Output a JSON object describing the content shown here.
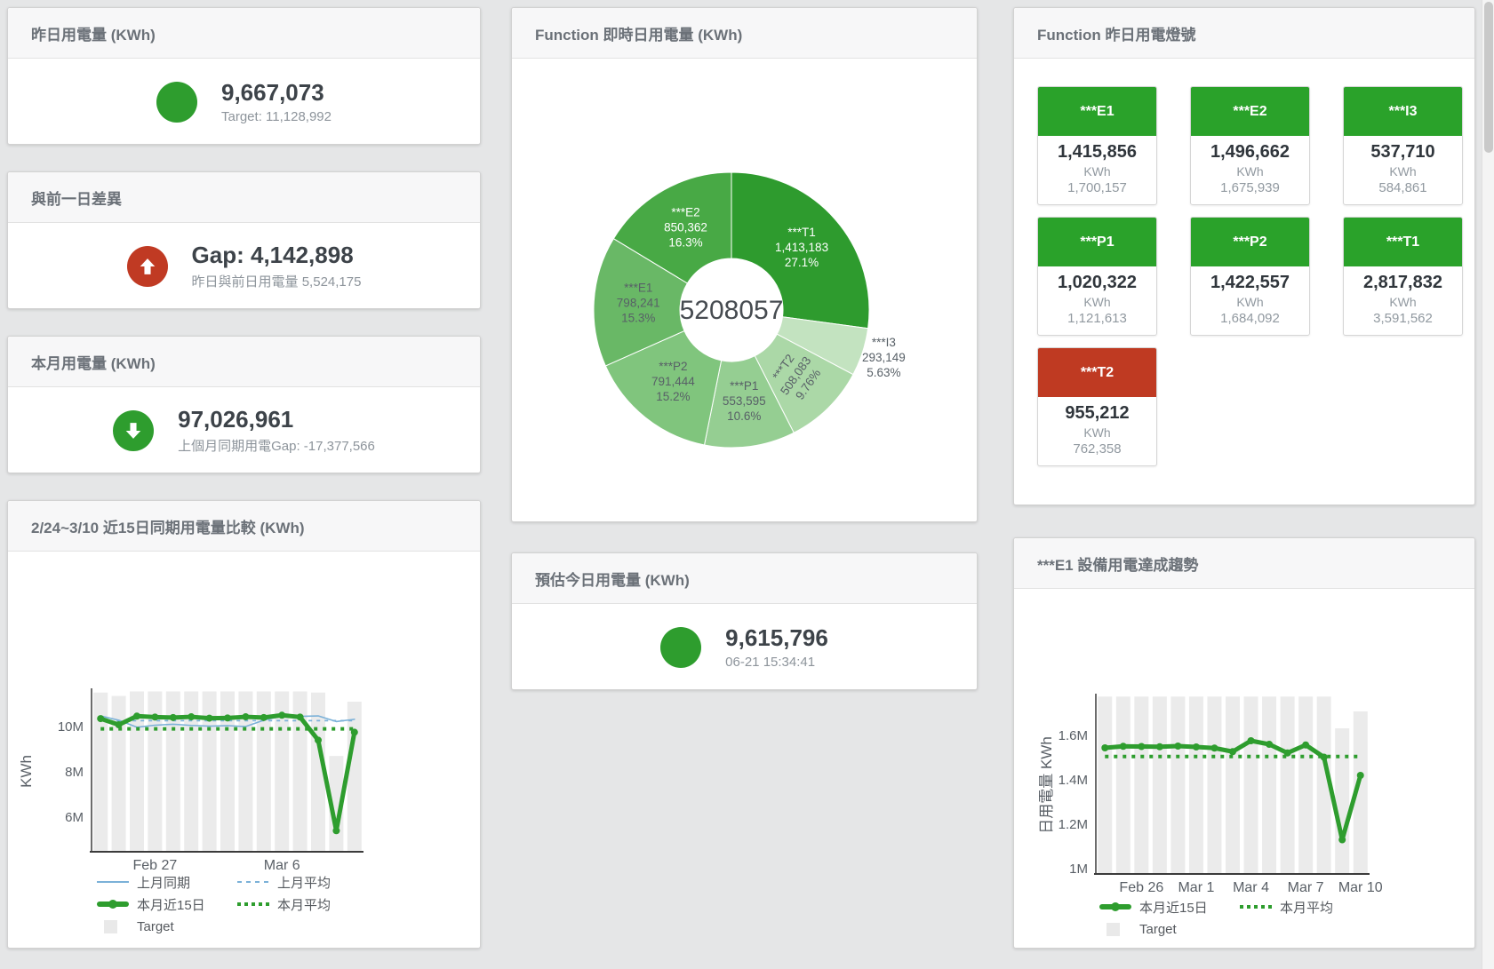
{
  "panels": {
    "yesterday": {
      "title": "昨日用電量 (KWh)",
      "value": "9,667,073",
      "subtext": "Target: 11,128,992",
      "indicator_color": "#2e9d2e",
      "arrow": "none"
    },
    "gap_prev_day": {
      "title": "與前一日差異",
      "value": "Gap: 4,142,898",
      "subtext": "昨日與前日用電量 5,524,175",
      "indicator_color": "#c03a23",
      "arrow": "up"
    },
    "month": {
      "title": "本月用電量 (KWh)",
      "value": "97,026,961",
      "subtext": "上個月同期用電Gap: -17,377,566",
      "indicator_color": "#2e9d2e",
      "arrow": "down"
    },
    "estimate_today": {
      "title": "預估今日用電量 (KWh)",
      "value": "9,615,796",
      "subtext": "06-21 15:34:41",
      "indicator_color": "#2e9d2e",
      "arrow": "none"
    },
    "donut_panel": {
      "title": "Function 即時日用電量 (KWh)"
    },
    "lights": {
      "title": "Function 昨日用電燈號",
      "tiles": [
        {
          "label": "***E1",
          "value": "1,415,856",
          "unit": "KWh",
          "target": "1,700,157",
          "status_color": "#2aa22a"
        },
        {
          "label": "***E2",
          "value": "1,496,662",
          "unit": "KWh",
          "target": "1,675,939",
          "status_color": "#2aa22a"
        },
        {
          "label": "***I3",
          "value": "537,710",
          "unit": "KWh",
          "target": "584,861",
          "status_color": "#2aa22a"
        },
        {
          "label": "***P1",
          "value": "1,020,322",
          "unit": "KWh",
          "target": "1,121,613",
          "status_color": "#2aa22a"
        },
        {
          "label": "***P2",
          "value": "1,422,557",
          "unit": "KWh",
          "target": "1,684,092",
          "status_color": "#2aa22a"
        },
        {
          "label": "***T1",
          "value": "2,817,832",
          "unit": "KWh",
          "target": "3,591,562",
          "status_color": "#2aa22a"
        },
        {
          "label": "***T2",
          "value": "955,212",
          "unit": "KWh",
          "target": "762,358",
          "status_color": "#bf3a22"
        }
      ]
    },
    "compare15_panel": {
      "title": "2/24~3/10 近15日同期用電量比較 (KWh)"
    },
    "e1trend_panel": {
      "title": "***E1 設備用電達成趨勢"
    }
  },
  "chart_data": [
    {
      "id": "donut",
      "type": "pie",
      "title": "Function 即時日用電量 (KWh)",
      "center_total": "5208057",
      "slices": [
        {
          "name": "***T1",
          "value": 1413183,
          "value_label": "1,413,183",
          "pct_label": "27.1%",
          "color": "#2e9b2e",
          "label_color": "#ffffff",
          "label_pos": "inside"
        },
        {
          "name": "***I3",
          "value": 293149,
          "value_label": "293,149",
          "pct_label": "5.63%",
          "color": "#c3e3c0",
          "label_color": "#586067",
          "label_pos": "outside"
        },
        {
          "name": "***T2",
          "value": 508083,
          "value_label": "508,083",
          "pct_label": "9.76%",
          "color": "#abd8a7",
          "label_color": "#586067",
          "label_pos": "inside",
          "rotate": -55
        },
        {
          "name": "***P1",
          "value": 553595,
          "value_label": "553,595",
          "pct_label": "10.6%",
          "color": "#95ce92",
          "label_color": "#586067",
          "label_pos": "inside"
        },
        {
          "name": "***P2",
          "value": 791444,
          "value_label": "791,444",
          "pct_label": "15.2%",
          "color": "#80c57d",
          "label_color": "#586067",
          "label_pos": "inside"
        },
        {
          "name": "***E1",
          "value": 798241,
          "value_label": "798,241",
          "pct_label": "15.3%",
          "color": "#69b866",
          "label_color": "#586067",
          "label_pos": "inside"
        },
        {
          "name": "***E2",
          "value": 850362,
          "value_label": "850,362",
          "pct_label": "16.3%",
          "color": "#48a945",
          "label_color": "#ffffff",
          "label_pos": "inside"
        }
      ]
    },
    {
      "id": "compare15",
      "type": "line",
      "title": "2/24~3/10 近15日同期用電量比較 (KWh)",
      "ylabel": "KWh",
      "ylim": [
        4.47,
        11.57
      ],
      "categories": [
        "2/24",
        "2/25",
        "2/26",
        "2/27",
        "2/28",
        "3/1",
        "3/2",
        "3/3",
        "3/4",
        "3/5",
        "3/6",
        "3/7",
        "3/8",
        "3/9",
        "3/10"
      ],
      "yticks": [
        {
          "v": 6,
          "label": "6M"
        },
        {
          "v": 8,
          "label": "8M"
        },
        {
          "v": 10,
          "label": "10M"
        }
      ],
      "xticks": [
        {
          "i": 3,
          "label": "Feb 27"
        },
        {
          "i": 10,
          "label": "Mar 6"
        }
      ],
      "target_bars": {
        "name": "Target",
        "color": "#ebebeb",
        "values": [
          11.5,
          11.35,
          11.55,
          11.55,
          11.55,
          11.55,
          11.55,
          11.55,
          11.55,
          11.55,
          11.55,
          11.55,
          11.5,
          8.7,
          11.1
        ]
      },
      "series": [
        {
          "name": "上月同期",
          "color": "#7bb1d8",
          "width": 1.6,
          "values": [
            10.47,
            10.28,
            9.97,
            10.06,
            10.1,
            10.05,
            10.02,
            10.04,
            10.0,
            10.28,
            10.46,
            10.45,
            10.47,
            10.22,
            10.32
          ]
        },
        {
          "name": "上月平均",
          "color": "#7bb1d8",
          "width": 1.8,
          "dash": "4 5",
          "constant": 10.26
        },
        {
          "name": "本月近15日",
          "color": "#2e9d2e",
          "width": 5,
          "dots": 4,
          "values": [
            10.35,
            10.08,
            10.46,
            10.42,
            10.4,
            10.43,
            10.37,
            10.38,
            10.43,
            10.4,
            10.5,
            10.42,
            9.4,
            5.4,
            9.75
          ]
        },
        {
          "name": "本月平均",
          "color": "#2e9d2e",
          "width": 4,
          "dash": "4 6",
          "constant": 9.9
        }
      ],
      "legend": [
        {
          "swatch": "line",
          "color": "#7bb1d8",
          "label": "上月同期"
        },
        {
          "swatch": "dash",
          "color": "#7bb1d8",
          "label": "上月平均"
        },
        {
          "swatch": "thick",
          "color": "#2e9d2e",
          "label": "本月近15日"
        },
        {
          "swatch": "dots",
          "color": "#2e9d2e",
          "label": "本月平均"
        },
        {
          "swatch": "box",
          "color": "#e9e9e9",
          "label": "Target"
        }
      ]
    },
    {
      "id": "e1trend",
      "type": "line",
      "title": "***E1 設備用電達成趨勢",
      "ylabel": "日用電量 KWh",
      "ylim": [
        0.976,
        1.776
      ],
      "categories": [
        "2/24",
        "2/25",
        "2/26",
        "2/27",
        "2/28",
        "3/1",
        "3/2",
        "3/3",
        "3/4",
        "3/5",
        "3/6",
        "3/7",
        "3/8",
        "3/9",
        "3/10"
      ],
      "yticks": [
        {
          "v": 1,
          "label": "1M"
        },
        {
          "v": 1.2,
          "label": "1.2M"
        },
        {
          "v": 1.4,
          "label": "1.4M"
        },
        {
          "v": 1.6,
          "label": "1.6M"
        }
      ],
      "xticks": [
        {
          "i": 2,
          "label": "Feb 26"
        },
        {
          "i": 5,
          "label": "Mar 1"
        },
        {
          "i": 8,
          "label": "Mar 4"
        },
        {
          "i": 11,
          "label": "Mar 7"
        },
        {
          "i": 14,
          "label": "Mar 10"
        }
      ],
      "target_bars": {
        "name": "Target",
        "color": "#ebebeb",
        "values": [
          1.775,
          1.775,
          1.775,
          1.775,
          1.775,
          1.775,
          1.775,
          1.775,
          1.775,
          1.775,
          1.775,
          1.775,
          1.775,
          1.632,
          1.708
        ]
      },
      "series": [
        {
          "name": "本月近15日",
          "color": "#2e9d2e",
          "width": 5,
          "dots": 4,
          "values": [
            1.544,
            1.551,
            1.55,
            1.549,
            1.552,
            1.548,
            1.543,
            1.527,
            1.576,
            1.56,
            1.521,
            1.557,
            1.502,
            1.13,
            1.42
          ]
        },
        {
          "name": "本月平均",
          "color": "#2e9d2e",
          "width": 4,
          "dash": "4 6",
          "constant": 1.505
        }
      ],
      "legend": [
        {
          "swatch": "thick",
          "color": "#2e9d2e",
          "label": "本月近15日"
        },
        {
          "swatch": "dots",
          "color": "#2e9d2e",
          "label": "本月平均"
        },
        {
          "swatch": "box",
          "color": "#e9e9e9",
          "label": "Target"
        }
      ]
    }
  ]
}
